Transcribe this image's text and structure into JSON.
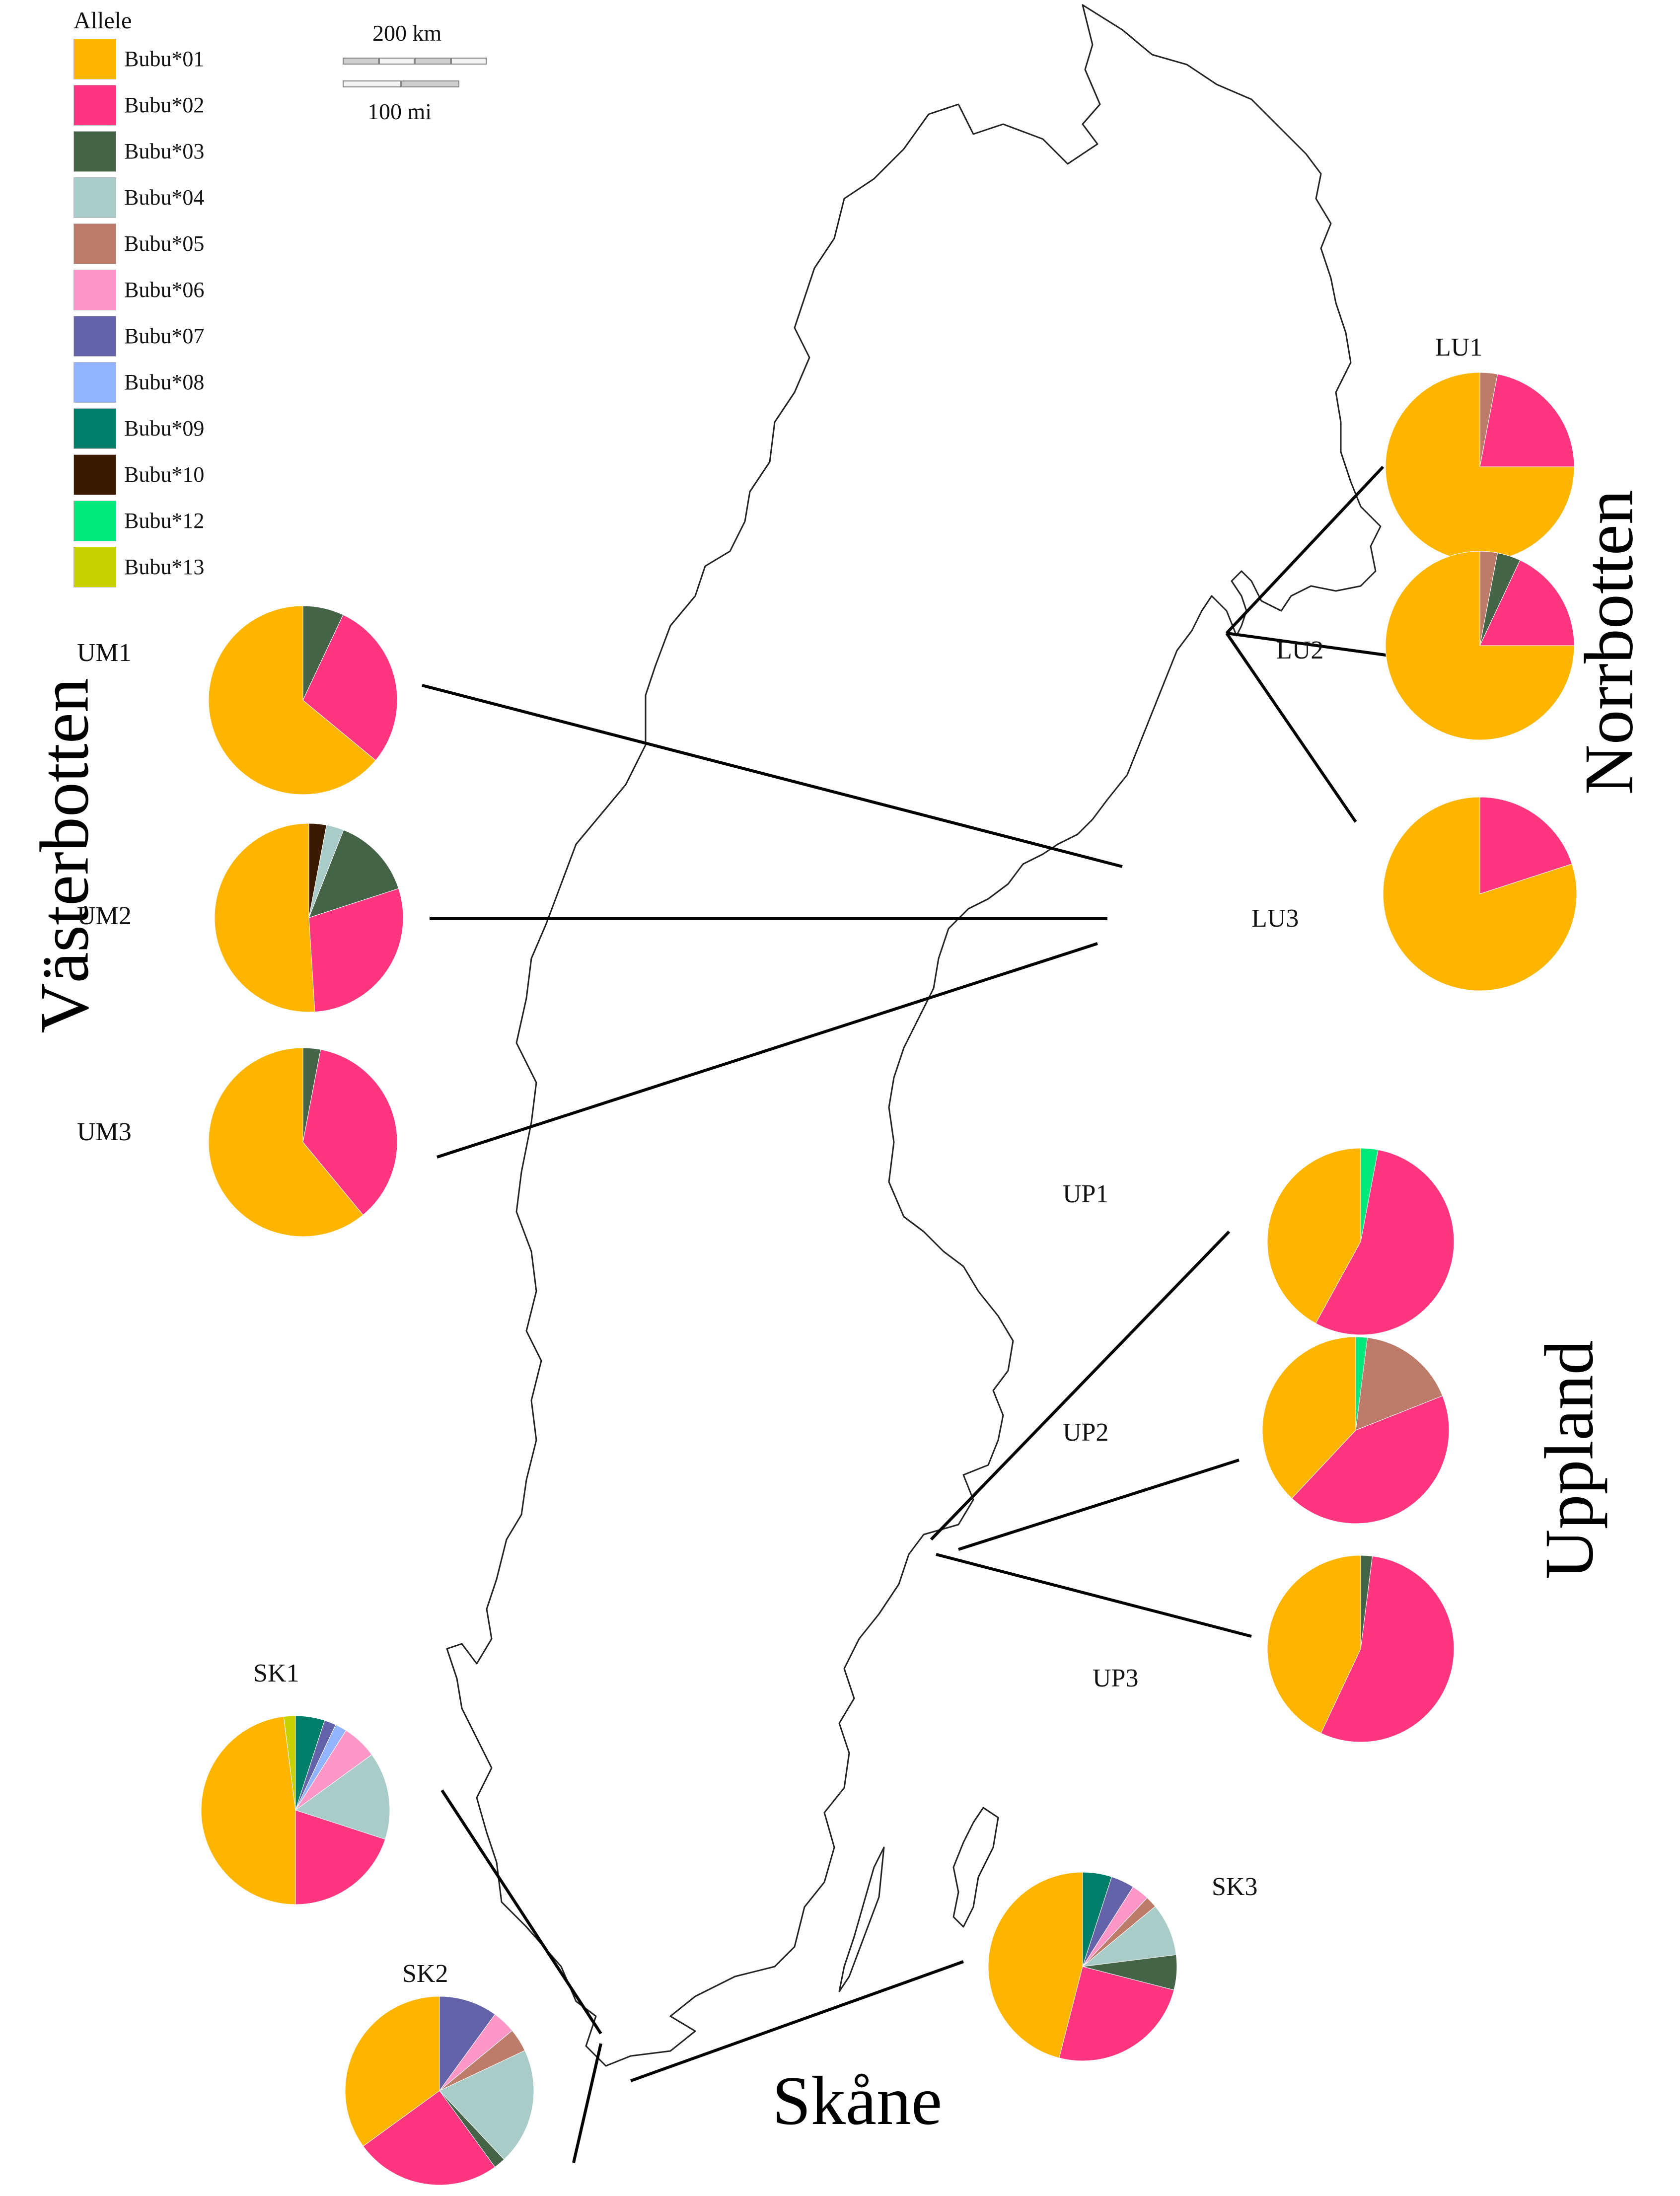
{
  "legend": {
    "title": "Allele",
    "items": [
      {
        "label": "Bubu*01",
        "color": "#FDB500"
      },
      {
        "label": "Bubu*02",
        "color": "#FF3580"
      },
      {
        "label": "Bubu*03",
        "color": "#456347"
      },
      {
        "label": "Bubu*04",
        "color": "#A9CCC8"
      },
      {
        "label": "Bubu*05",
        "color": "#BD7B6A"
      },
      {
        "label": "Bubu*06",
        "color": "#FF96C8"
      },
      {
        "label": "Bubu*07",
        "color": "#6463A9"
      },
      {
        "label": "Bubu*08",
        "color": "#92B3FF"
      },
      {
        "label": "Bubu*09",
        "color": "#007E69"
      },
      {
        "label": "Bubu*10",
        "color": "#3A1B00"
      },
      {
        "label": "Bubu*12",
        "color": "#00E97A"
      },
      {
        "label": "Bubu*13",
        "color": "#C8D200"
      }
    ]
  },
  "scale": {
    "km_label": "200 km",
    "mi_label": "100 mi"
  },
  "regions": {
    "vasterbotten": "Västerbotten",
    "norrbotten": "Norrbotten",
    "uppland": "Uppland",
    "skane": "Skåne"
  },
  "chart_data": {
    "type": "pie",
    "units": "allele frequency",
    "populations": [
      {
        "label": "LU1",
        "region": "Norrbotten",
        "slices": [
          {
            "allele": "Bubu*05",
            "value": 0.03
          },
          {
            "allele": "Bubu*02",
            "value": 0.22
          },
          {
            "allele": "Bubu*01",
            "value": 0.75
          }
        ]
      },
      {
        "label": "LU2",
        "region": "Norrbotten",
        "slices": [
          {
            "allele": "Bubu*05",
            "value": 0.03
          },
          {
            "allele": "Bubu*03",
            "value": 0.04
          },
          {
            "allele": "Bubu*02",
            "value": 0.18
          },
          {
            "allele": "Bubu*01",
            "value": 0.75
          }
        ]
      },
      {
        "label": "LU3",
        "region": "Norrbotten",
        "slices": [
          {
            "allele": "Bubu*02",
            "value": 0.2
          },
          {
            "allele": "Bubu*01",
            "value": 0.8
          }
        ]
      },
      {
        "label": "UM1",
        "region": "Västerbotten",
        "slices": [
          {
            "allele": "Bubu*03",
            "value": 0.07
          },
          {
            "allele": "Bubu*02",
            "value": 0.29
          },
          {
            "allele": "Bubu*01",
            "value": 0.64
          }
        ]
      },
      {
        "label": "UM2",
        "region": "Västerbotten",
        "slices": [
          {
            "allele": "Bubu*10",
            "value": 0.03
          },
          {
            "allele": "Bubu*04",
            "value": 0.03
          },
          {
            "allele": "Bubu*03",
            "value": 0.14
          },
          {
            "allele": "Bubu*02",
            "value": 0.29
          },
          {
            "allele": "Bubu*01",
            "value": 0.51
          }
        ]
      },
      {
        "label": "UM3",
        "region": "Västerbotten",
        "slices": [
          {
            "allele": "Bubu*03",
            "value": 0.03
          },
          {
            "allele": "Bubu*02",
            "value": 0.36
          },
          {
            "allele": "Bubu*01",
            "value": 0.61
          }
        ]
      },
      {
        "label": "UP1",
        "region": "Uppland",
        "slices": [
          {
            "allele": "Bubu*12",
            "value": 0.03
          },
          {
            "allele": "Bubu*02",
            "value": 0.55
          },
          {
            "allele": "Bubu*01",
            "value": 0.42
          }
        ]
      },
      {
        "label": "UP2",
        "region": "Uppland",
        "slices": [
          {
            "allele": "Bubu*12",
            "value": 0.02
          },
          {
            "allele": "Bubu*05",
            "value": 0.17
          },
          {
            "allele": "Bubu*02",
            "value": 0.43
          },
          {
            "allele": "Bubu*01",
            "value": 0.38
          }
        ]
      },
      {
        "label": "UP3",
        "region": "Uppland",
        "slices": [
          {
            "allele": "Bubu*03",
            "value": 0.02
          },
          {
            "allele": "Bubu*02",
            "value": 0.55
          },
          {
            "allele": "Bubu*01",
            "value": 0.43
          }
        ]
      },
      {
        "label": "SK1",
        "region": "Skåne",
        "slices": [
          {
            "allele": "Bubu*09",
            "value": 0.05
          },
          {
            "allele": "Bubu*07",
            "value": 0.02
          },
          {
            "allele": "Bubu*08",
            "value": 0.02
          },
          {
            "allele": "Bubu*06",
            "value": 0.06
          },
          {
            "allele": "Bubu*04",
            "value": 0.15
          },
          {
            "allele": "Bubu*02",
            "value": 0.2
          },
          {
            "allele": "Bubu*01",
            "value": 0.48
          },
          {
            "allele": "Bubu*13",
            "value": 0.02
          }
        ]
      },
      {
        "label": "SK2",
        "region": "Skåne",
        "slices": [
          {
            "allele": "Bubu*07",
            "value": 0.1
          },
          {
            "allele": "Bubu*06",
            "value": 0.04
          },
          {
            "allele": "Bubu*05",
            "value": 0.04
          },
          {
            "allele": "Bubu*04",
            "value": 0.2
          },
          {
            "allele": "Bubu*03",
            "value": 0.02
          },
          {
            "allele": "Bubu*02",
            "value": 0.25
          },
          {
            "allele": "Bubu*01",
            "value": 0.35
          }
        ]
      },
      {
        "label": "SK3",
        "region": "Skåne",
        "slices": [
          {
            "allele": "Bubu*09",
            "value": 0.05
          },
          {
            "allele": "Bubu*07",
            "value": 0.04
          },
          {
            "allele": "Bubu*06",
            "value": 0.03
          },
          {
            "allele": "Bubu*05",
            "value": 0.02
          },
          {
            "allele": "Bubu*04",
            "value": 0.09
          },
          {
            "allele": "Bubu*03",
            "value": 0.06
          },
          {
            "allele": "Bubu*02",
            "value": 0.25
          },
          {
            "allele": "Bubu*01",
            "value": 0.46
          }
        ]
      }
    ]
  }
}
